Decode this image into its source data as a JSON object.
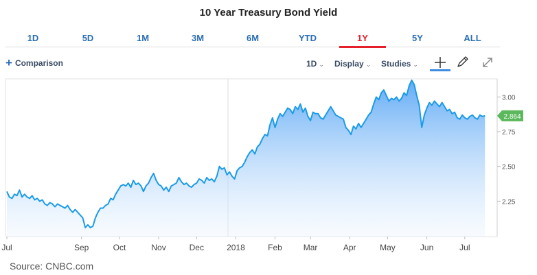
{
  "title": "10 Year Treasury Bond Yield",
  "range_tabs": [
    "1D",
    "5D",
    "1M",
    "3M",
    "6M",
    "YTD",
    "1Y",
    "5Y",
    "ALL"
  ],
  "active_range": "1Y",
  "toolbar": {
    "comparison_label": "Comparison",
    "interval_label": "1D",
    "display_label": "Display",
    "studies_label": "Studies",
    "icons": [
      "crosshair-icon",
      "draw-pencil-icon",
      "fullscreen-icon"
    ]
  },
  "source": "Source: CNBC.com",
  "colors": {
    "line": "#1a9be8",
    "accent_red": "#e4212b",
    "tab_blue": "#2a6eb4",
    "price_tag": "#5cb85c"
  },
  "chart_data": {
    "type": "area",
    "title": "10 Year Treasury Bond Yield",
    "xlabel": "",
    "ylabel": "",
    "ylim": [
      2.02,
      3.13
    ],
    "y_ticks": [
      "2.25",
      "2.50",
      "2.75",
      "3.00"
    ],
    "x_tick_labels": [
      "Jul",
      "Sep",
      "Oct",
      "Nov",
      "Dec",
      "2018",
      "Feb",
      "Mar",
      "Apr",
      "May",
      "Jun",
      "Jul"
    ],
    "x_tick_positions": [
      0,
      59,
      89,
      120,
      150,
      181,
      212,
      240,
      271,
      301,
      332,
      362
    ],
    "x_domain": [
      0,
      380
    ],
    "last_value": "2.864",
    "grid": false,
    "series": [
      {
        "values": [
          [
            0,
            2.32
          ],
          [
            2,
            2.28
          ],
          [
            4,
            2.27
          ],
          [
            6,
            2.3
          ],
          [
            8,
            2.29
          ],
          [
            10,
            2.33
          ],
          [
            12,
            2.28
          ],
          [
            14,
            2.3
          ],
          [
            16,
            2.28
          ],
          [
            18,
            2.27
          ],
          [
            20,
            2.29
          ],
          [
            22,
            2.26
          ],
          [
            24,
            2.27
          ],
          [
            26,
            2.25
          ],
          [
            28,
            2.26
          ],
          [
            30,
            2.23
          ],
          [
            32,
            2.22
          ],
          [
            34,
            2.24
          ],
          [
            36,
            2.23
          ],
          [
            38,
            2.21
          ],
          [
            40,
            2.23
          ],
          [
            42,
            2.22
          ],
          [
            44,
            2.21
          ],
          [
            46,
            2.2
          ],
          [
            48,
            2.22
          ],
          [
            50,
            2.19
          ],
          [
            52,
            2.17
          ],
          [
            54,
            2.19
          ],
          [
            56,
            2.17
          ],
          [
            58,
            2.15
          ],
          [
            60,
            2.13
          ],
          [
            62,
            2.06
          ],
          [
            64,
            2.08
          ],
          [
            66,
            2.06
          ],
          [
            68,
            2.07
          ],
          [
            70,
            2.13
          ],
          [
            72,
            2.17
          ],
          [
            74,
            2.2
          ],
          [
            76,
            2.2
          ],
          [
            78,
            2.22
          ],
          [
            80,
            2.23
          ],
          [
            82,
            2.27
          ],
          [
            84,
            2.26
          ],
          [
            86,
            2.3
          ],
          [
            88,
            2.33
          ],
          [
            90,
            2.36
          ],
          [
            92,
            2.37
          ],
          [
            94,
            2.36
          ],
          [
            96,
            2.38
          ],
          [
            98,
            2.35
          ],
          [
            100,
            2.4
          ],
          [
            102,
            2.37
          ],
          [
            104,
            2.38
          ],
          [
            106,
            2.36
          ],
          [
            108,
            2.32
          ],
          [
            110,
            2.36
          ],
          [
            112,
            2.38
          ],
          [
            114,
            2.42
          ],
          [
            116,
            2.45
          ],
          [
            118,
            2.4
          ],
          [
            120,
            2.37
          ],
          [
            122,
            2.36
          ],
          [
            124,
            2.33
          ],
          [
            126,
            2.35
          ],
          [
            128,
            2.32
          ],
          [
            130,
            2.36
          ],
          [
            132,
            2.37
          ],
          [
            134,
            2.38
          ],
          [
            136,
            2.42
          ],
          [
            138,
            2.39
          ],
          [
            140,
            2.37
          ],
          [
            142,
            2.38
          ],
          [
            144,
            2.36
          ],
          [
            146,
            2.35
          ],
          [
            148,
            2.37
          ],
          [
            150,
            2.38
          ],
          [
            152,
            2.41
          ],
          [
            154,
            2.4
          ],
          [
            156,
            2.38
          ],
          [
            158,
            2.42
          ],
          [
            160,
            2.4
          ],
          [
            162,
            2.41
          ],
          [
            164,
            2.39
          ],
          [
            166,
            2.43
          ],
          [
            168,
            2.5
          ],
          [
            170,
            2.48
          ],
          [
            172,
            2.49
          ],
          [
            174,
            2.44
          ],
          [
            176,
            2.46
          ],
          [
            178,
            2.43
          ],
          [
            180,
            2.41
          ],
          [
            182,
            2.47
          ],
          [
            184,
            2.49
          ],
          [
            186,
            2.5
          ],
          [
            188,
            2.53
          ],
          [
            190,
            2.57
          ],
          [
            192,
            2.6
          ],
          [
            194,
            2.62
          ],
          [
            196,
            2.59
          ],
          [
            198,
            2.64
          ],
          [
            200,
            2.66
          ],
          [
            202,
            2.7
          ],
          [
            204,
            2.73
          ],
          [
            206,
            2.72
          ],
          [
            208,
            2.8
          ],
          [
            210,
            2.85
          ],
          [
            212,
            2.78
          ],
          [
            214,
            2.84
          ],
          [
            216,
            2.88
          ],
          [
            218,
            2.86
          ],
          [
            220,
            2.89
          ],
          [
            222,
            2.92
          ],
          [
            224,
            2.91
          ],
          [
            226,
            2.88
          ],
          [
            228,
            2.93
          ],
          [
            230,
            2.91
          ],
          [
            232,
            2.95
          ],
          [
            234,
            2.89
          ],
          [
            236,
            2.92
          ],
          [
            238,
            2.86
          ],
          [
            240,
            2.83
          ],
          [
            242,
            2.89
          ],
          [
            244,
            2.88
          ],
          [
            246,
            2.88
          ],
          [
            248,
            2.85
          ],
          [
            250,
            2.84
          ],
          [
            252,
            2.87
          ],
          [
            254,
            2.9
          ],
          [
            256,
            2.93
          ],
          [
            258,
            2.9
          ],
          [
            260,
            2.87
          ],
          [
            262,
            2.86
          ],
          [
            264,
            2.85
          ],
          [
            266,
            2.84
          ],
          [
            268,
            2.78
          ],
          [
            270,
            2.76
          ],
          [
            272,
            2.73
          ],
          [
            274,
            2.79
          ],
          [
            276,
            2.77
          ],
          [
            278,
            2.81
          ],
          [
            280,
            2.78
          ],
          [
            282,
            2.81
          ],
          [
            284,
            2.84
          ],
          [
            286,
            2.87
          ],
          [
            288,
            2.89
          ],
          [
            290,
            2.95
          ],
          [
            292,
            3.0
          ],
          [
            294,
            2.98
          ],
          [
            296,
            3.03
          ],
          [
            298,
            3.05
          ],
          [
            300,
            3.01
          ],
          [
            302,
            2.97
          ],
          [
            304,
            2.99
          ],
          [
            306,
            2.98
          ],
          [
            308,
            3.0
          ],
          [
            310,
            2.97
          ],
          [
            312,
            2.99
          ],
          [
            314,
            3.03
          ],
          [
            316,
            3.01
          ],
          [
            318,
            3.08
          ],
          [
            320,
            3.12
          ],
          [
            322,
            3.09
          ],
          [
            324,
            3.01
          ],
          [
            326,
            2.94
          ],
          [
            328,
            2.78
          ],
          [
            330,
            2.87
          ],
          [
            332,
            2.92
          ],
          [
            334,
            2.96
          ],
          [
            336,
            2.94
          ],
          [
            338,
            2.97
          ],
          [
            340,
            2.95
          ],
          [
            342,
            2.93
          ],
          [
            344,
            2.96
          ],
          [
            346,
            2.93
          ],
          [
            348,
            2.9
          ],
          [
            350,
            2.91
          ],
          [
            352,
            2.88
          ],
          [
            354,
            2.89
          ],
          [
            356,
            2.85
          ],
          [
            358,
            2.84
          ],
          [
            360,
            2.87
          ],
          [
            362,
            2.85
          ],
          [
            364,
            2.84
          ],
          [
            366,
            2.86
          ],
          [
            368,
            2.87
          ],
          [
            370,
            2.85
          ],
          [
            372,
            2.84
          ],
          [
            374,
            2.87
          ],
          [
            376,
            2.86
          ],
          [
            378,
            2.864
          ]
        ]
      }
    ]
  }
}
